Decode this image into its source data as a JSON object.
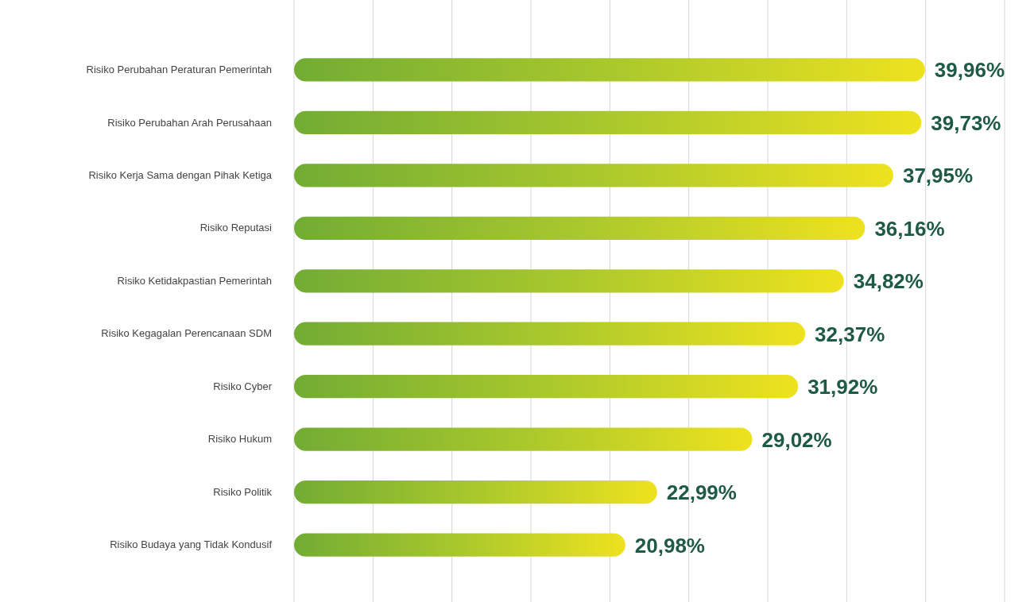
{
  "chart_data": {
    "type": "bar",
    "orientation": "horizontal",
    "categories": [
      "Risiko Perubahan Peraturan Pemerintah",
      "Risiko Perubahan Arah Perusahaan",
      "Risiko Kerja Sama dengan Pihak Ketiga",
      "Risiko Reputasi",
      "Risiko Ketidakpastian Pemerintah",
      "Risiko Kegagalan Perencanaan SDM",
      "Risiko Cyber",
      "Risiko Hukum",
      "Risiko Politik",
      "Risiko Budaya yang Tidak Kondusif"
    ],
    "values": [
      39.96,
      39.73,
      37.95,
      36.16,
      34.82,
      32.37,
      31.92,
      29.02,
      22.99,
      20.98
    ],
    "value_labels": [
      "39,96%",
      "39,73%",
      "37,95%",
      "36,16%",
      "34,82%",
      "32,37%",
      "31,92%",
      "29,02%",
      "22,99%",
      "20,98%"
    ],
    "color": "#a9c82c",
    "xlim": [
      0,
      45
    ],
    "xticks": [
      {
        "value": 0,
        "label": null
      },
      {
        "value": 5,
        "label": null
      },
      {
        "value": 10,
        "label": null
      },
      {
        "value": 15,
        "label": null
      },
      {
        "value": 20,
        "label": null
      },
      {
        "value": 25,
        "label": null
      },
      {
        "value": 30,
        "label": null
      },
      {
        "value": 35,
        "label": null
      },
      {
        "value": 40,
        "label": null
      },
      {
        "value": 45,
        "label": null
      }
    ],
    "grid": "x",
    "tick_labels": "y"
  }
}
